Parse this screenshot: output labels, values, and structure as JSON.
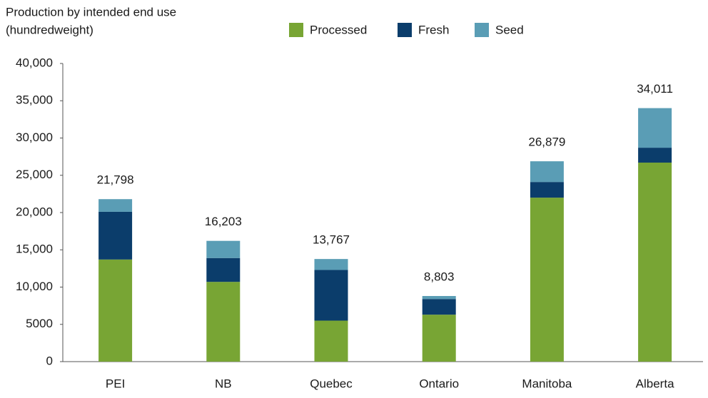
{
  "chart_data": {
    "type": "stacked_bar",
    "title": "Production by intended end use",
    "y_label": "(hundredweight)",
    "categories": [
      "PEI",
      "NB",
      "Quebec",
      "Ontario",
      "Manitoba",
      "Alberta"
    ],
    "series": [
      {
        "name": "Processed",
        "color": "#78a534",
        "values": [
          13700,
          10700,
          5500,
          6300,
          22000,
          26700
        ]
      },
      {
        "name": "Fresh",
        "color": "#0b3d6b",
        "values": [
          6400,
          3200,
          6800,
          2100,
          2100,
          2000
        ]
      },
      {
        "name": "Seed",
        "color": "#5a9db5",
        "values": [
          1698,
          2303,
          1467,
          403,
          2779,
          5311
        ]
      }
    ],
    "totals": {
      "values": [
        21798,
        16203,
        13767,
        8803,
        26879,
        34011
      ],
      "value_labels": [
        "21,798",
        "16,203",
        "13,767",
        "8,803",
        "26,879",
        "34,011"
      ]
    },
    "ylim": [
      0,
      40000
    ],
    "yticks": [
      0,
      5000,
      {
        "value": 10000,
        "label": "10,000"
      },
      {
        "value": 15000,
        "label": "15,000"
      },
      {
        "value": 20000,
        "label": "20,000"
      },
      {
        "value": 25000,
        "label": "25,000"
      },
      {
        "value": 30000,
        "label": "30,000"
      },
      {
        "value": 35000,
        "label": "35,000"
      },
      {
        "value": 40000,
        "label": "40,000"
      }
    ],
    "grid": false,
    "legend": "top"
  }
}
